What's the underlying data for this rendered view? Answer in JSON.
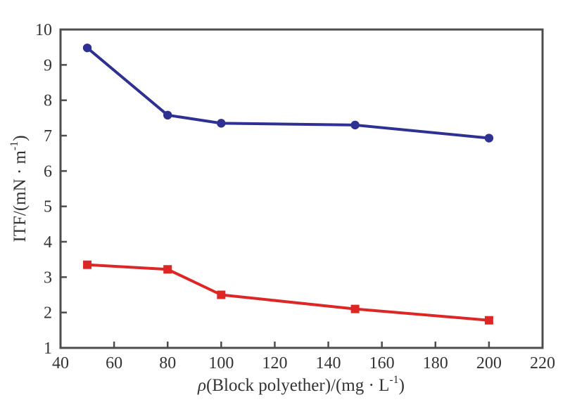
{
  "figure": {
    "background_color": "#ffffff",
    "axis_color": "#4d4d4d",
    "text_color": "#333333"
  },
  "chart_data": {
    "type": "line",
    "title": "",
    "x": [
      50,
      80,
      100,
      150,
      200
    ],
    "series": [
      {
        "name": "upper-series-blue",
        "color": "#2e3192",
        "marker": "circle",
        "values": [
          9.48,
          7.58,
          7.35,
          7.3,
          6.93
        ]
      },
      {
        "name": "lower-series-red",
        "color": "#dd2626",
        "marker": "square",
        "values": [
          3.35,
          3.22,
          2.5,
          2.1,
          1.78
        ]
      }
    ],
    "xlabel": {
      "plain": "ρ(Block polyether)/(mg · L⁻¹)",
      "segments": [
        {
          "text": "ρ",
          "italic": true
        },
        {
          "text": "(Block polyether)/(mg · L"
        },
        {
          "text": "-1",
          "sup": true
        },
        {
          "text": ")"
        }
      ]
    },
    "ylabel": {
      "plain": "ITF/(mN · m⁻¹)",
      "segments": [
        {
          "text": "ITF/(mN · m"
        },
        {
          "text": "-1",
          "sup": true
        },
        {
          "text": ")"
        }
      ]
    },
    "xlim": [
      40,
      220
    ],
    "ylim": [
      1,
      10
    ],
    "xticks": [
      40,
      60,
      80,
      100,
      120,
      140,
      160,
      180,
      200,
      220
    ],
    "yticks": [
      1,
      2,
      3,
      4,
      5,
      6,
      7,
      8,
      9,
      10
    ],
    "grid": false,
    "legend": "none",
    "plot_border": "full-box",
    "tick_direction": "in"
  }
}
